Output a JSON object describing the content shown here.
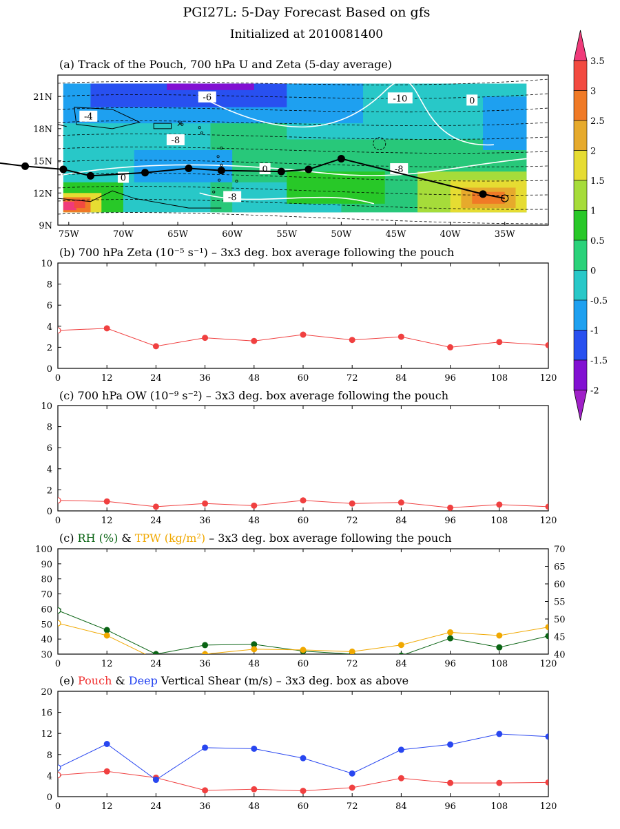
{
  "header": {
    "title": "PGI27L: 5-Day Forecast Based on gfs",
    "subtitle": "Initialized at 2010081400"
  },
  "colorbar": {
    "ticks": [
      "3.5",
      "3",
      "2.5",
      "2",
      "1.5",
      "1",
      "0.5",
      "0",
      "-0.5",
      "-1",
      "-1.5",
      "-2"
    ],
    "colors": [
      "#f03a7a",
      "#f24a40",
      "#f07a26",
      "#e6aa2c",
      "#e6dc32",
      "#a6dc3a",
      "#28c828",
      "#2ad27a",
      "#28c8c8",
      "#1ea0f0",
      "#2850f0",
      "#8210d2",
      "#a020c8"
    ]
  },
  "chart_data": [
    {
      "type": "map",
      "title": "(a) Track of the Pouch, 700 hPa U and Zeta (5-day average)",
      "xticks": [
        "75W",
        "70W",
        "65W",
        "60W",
        "55W",
        "50W",
        "45W",
        "40W",
        "35W"
      ],
      "yticks": [
        "21N",
        "18N",
        "15N",
        "12N",
        "9N"
      ],
      "contour_labels": [
        "-4",
        "-6",
        "-8",
        "0",
        "0",
        "-10",
        "0",
        "-8",
        "-8"
      ],
      "track": [
        {
          "lon": -83.0,
          "lat": 15.0
        },
        {
          "lon": -79.0,
          "lat": 14.5
        },
        {
          "lon": -75.5,
          "lat": 14.2
        },
        {
          "lon": -73.0,
          "lat": 13.6
        },
        {
          "lon": -68.0,
          "lat": 13.9
        },
        {
          "lon": -64.0,
          "lat": 14.3
        },
        {
          "lon": -61.0,
          "lat": 14.1
        },
        {
          "lon": -55.5,
          "lat": 14.0
        },
        {
          "lon": -53.0,
          "lat": 14.2
        },
        {
          "lon": -50.0,
          "lat": 15.2
        },
        {
          "lon": -37.0,
          "lat": 11.9
        },
        {
          "lon": -35.0,
          "lat": 11.5
        }
      ]
    },
    {
      "type": "line",
      "title": "(b) 700 hPa Zeta (10⁻⁵ s⁻¹) – 3x3 deg. box average following the pouch",
      "x": [
        0,
        12,
        24,
        36,
        48,
        60,
        72,
        84,
        96,
        108,
        120
      ],
      "ylim": [
        0,
        10
      ],
      "yticks": [
        0,
        2,
        4,
        6,
        8,
        10
      ],
      "series": [
        {
          "values": [
            3.6,
            3.8,
            2.1,
            2.9,
            2.6,
            3.2,
            2.7,
            3.0,
            2.0,
            2.5,
            2.2
          ],
          "color": "#f04040"
        }
      ]
    },
    {
      "type": "line",
      "title": "(c) 700 hPa OW (10⁻⁹ s⁻²) – 3x3 deg. box average following the pouch",
      "x": [
        0,
        12,
        24,
        36,
        48,
        60,
        72,
        84,
        96,
        108,
        120
      ],
      "ylim": [
        0,
        10
      ],
      "yticks": [
        0,
        2,
        4,
        6,
        8,
        10
      ],
      "series": [
        {
          "values": [
            1.0,
            0.9,
            0.4,
            0.7,
            0.5,
            1.0,
            0.7,
            0.8,
            0.3,
            0.6,
            0.4
          ],
          "color": "#f04040"
        }
      ]
    },
    {
      "type": "line",
      "title_parts": [
        {
          "text": "(c) ",
          "color": "#000000"
        },
        {
          "text": "RH (%)",
          "color": "#0a6414"
        },
        {
          "text": " & ",
          "color": "#000000"
        },
        {
          "text": "TPW (kg/m²)",
          "color": "#f0a800"
        },
        {
          "text": " – 3x3 deg. box average following the pouch",
          "color": "#000000"
        }
      ],
      "x": [
        0,
        12,
        24,
        36,
        48,
        60,
        72,
        84,
        96,
        108,
        120
      ],
      "ylim": [
        30,
        100
      ],
      "yticks": [
        30,
        40,
        50,
        60,
        70,
        80,
        90,
        100
      ],
      "y2lim": [
        40,
        70
      ],
      "y2ticks": [
        40,
        45,
        50,
        55,
        60,
        65,
        70
      ],
      "series": [
        {
          "name": "RH (%)",
          "axis": "left",
          "color": "#0a6414",
          "values": [
            59,
            46,
            30,
            36,
            36.5,
            32,
            30,
            29,
            40.5,
            34.5,
            42
          ]
        },
        {
          "name": "TPW (kg/m²)",
          "axis": "right",
          "color": "#f0a800",
          "values": [
            48.8,
            45.3,
            38.5,
            40.0,
            41.4,
            41.2,
            40.7,
            42.6,
            46.2,
            45.3,
            47.7
          ]
        }
      ]
    },
    {
      "type": "line",
      "title_parts": [
        {
          "text": "(e) ",
          "color": "#000000"
        },
        {
          "text": "Pouch",
          "color": "#f03030"
        },
        {
          "text": " & ",
          "color": "#000000"
        },
        {
          "text": "Deep",
          "color": "#2040f0"
        },
        {
          "text": " Vertical Shear (m/s) – 3x3 deg. box as above",
          "color": "#000000"
        }
      ],
      "x": [
        0,
        12,
        24,
        36,
        48,
        60,
        72,
        84,
        96,
        108,
        120
      ],
      "ylim": [
        0,
        20
      ],
      "yticks": [
        0,
        4,
        8,
        12,
        16,
        20
      ],
      "series": [
        {
          "name": "Pouch",
          "color": "#f04040",
          "values": [
            4.1,
            4.8,
            3.6,
            1.2,
            1.4,
            1.1,
            1.7,
            3.5,
            2.6,
            2.6,
            2.7
          ]
        },
        {
          "name": "Deep",
          "color": "#2846f0",
          "values": [
            5.5,
            10.0,
            3.2,
            9.3,
            9.1,
            7.3,
            4.4,
            8.9,
            9.9,
            11.9,
            11.4
          ]
        }
      ]
    }
  ]
}
